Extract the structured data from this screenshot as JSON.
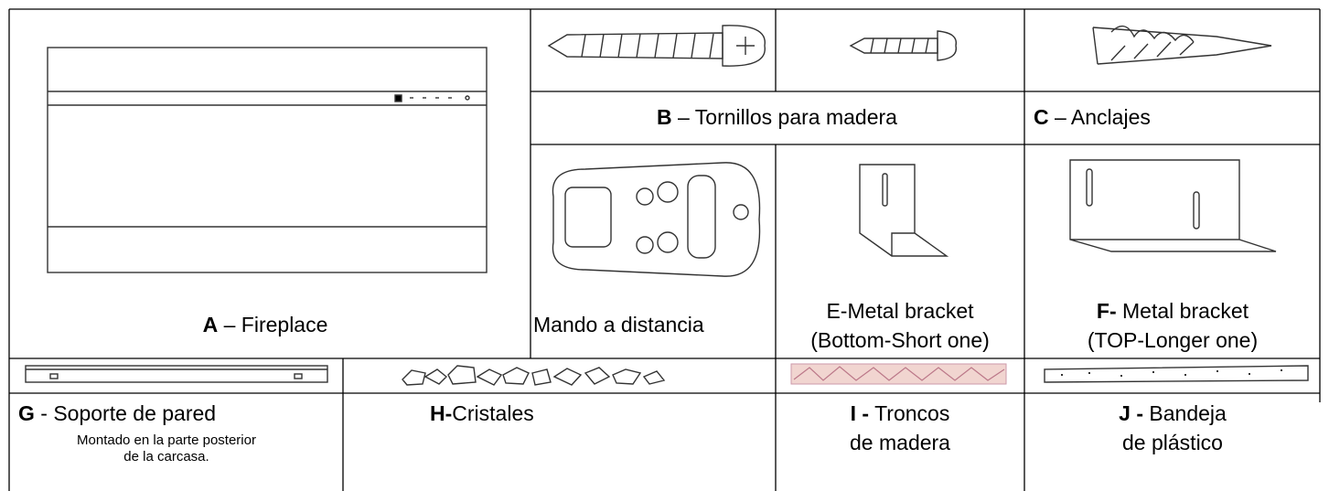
{
  "parts": {
    "a": {
      "letter": "A",
      "name": "– Fireplace"
    },
    "b": {
      "letter": "B",
      "name": "– Tornillos para madera"
    },
    "c": {
      "letter": "C",
      "name": "– Anclajes"
    },
    "d": {
      "name": "Mando a distancia"
    },
    "e": {
      "lines": [
        "E-Metal bracket",
        "(Bottom-Short one)"
      ]
    },
    "f": {
      "letter": "F-",
      "lines": [
        "Metal bracket",
        "(TOP-Longer one)"
      ]
    },
    "g": {
      "letter": "G",
      "name": "- Soporte de pared",
      "note": [
        "Montado en la parte posterior",
        "de la carcasa."
      ]
    },
    "h": {
      "letter": "H-",
      "name": "Cristales"
    },
    "i": {
      "letter": "I -",
      "lines": [
        "Troncos",
        "de madera"
      ]
    },
    "j": {
      "letter": "J -",
      "lines": [
        "Bandeja",
        "de plástico"
      ]
    }
  }
}
